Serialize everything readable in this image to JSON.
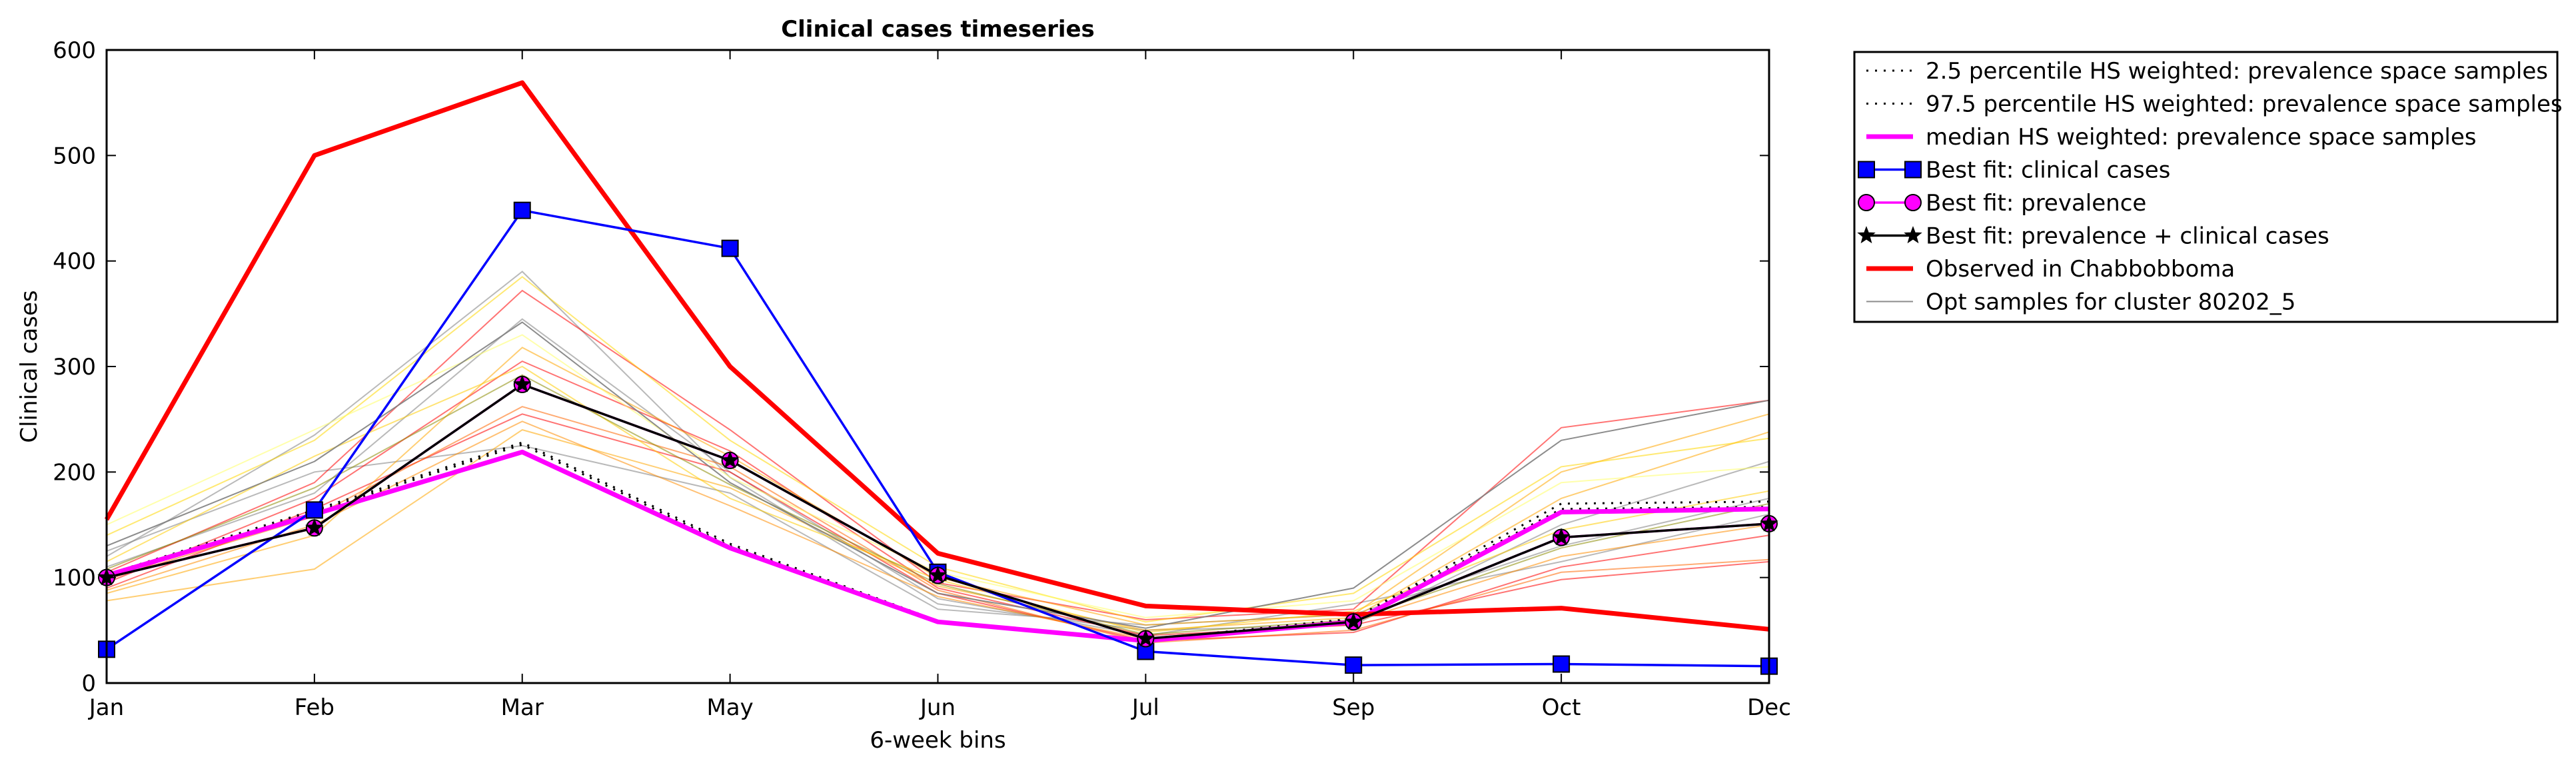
{
  "chart_data": {
    "type": "line",
    "title": "Clinical cases timeseries",
    "xlabel": "6-week bins",
    "ylabel": "Clinical cases",
    "categories": [
      "Jan",
      "Feb",
      "Mar",
      "May",
      "Jun",
      "Jul",
      "Sep",
      "Oct",
      "Dec"
    ],
    "yticks": [
      "0",
      "100",
      "200",
      "300",
      "400",
      "500",
      "600"
    ],
    "ylim": [
      0,
      600
    ],
    "grid": false,
    "legend_position": "outside-top-right",
    "series": [
      {
        "name": "2.5 percentile HS weighted: prevalence space samples",
        "color": "#000000",
        "style": "dotted",
        "values": [
          102,
          162,
          226,
          130,
          58,
          40,
          60,
          165,
          167
        ]
      },
      {
        "name": "97.5 percentile HS weighted: prevalence space samples",
        "color": "#000000",
        "style": "dotted",
        "values": [
          103,
          164,
          228,
          132,
          59,
          41,
          61,
          170,
          172
        ]
      },
      {
        "name": "median HS weighted: prevalence space samples",
        "color": "#ff00ff",
        "style": "solid-thick",
        "values": [
          102,
          160,
          219,
          128,
          58,
          40,
          58,
          162,
          165
        ]
      },
      {
        "name": "Best fit: clinical cases",
        "color": "#0000ff",
        "marker": "square",
        "values": [
          32,
          164,
          448,
          412,
          105,
          30,
          17,
          18,
          16
        ]
      },
      {
        "name": "Best fit: prevalence",
        "color": "#ff00ff",
        "marker": "circle",
        "values": [
          100,
          147,
          283,
          211,
          102,
          42,
          58,
          138,
          151
        ]
      },
      {
        "name": "Best fit: prevalence + clinical cases",
        "color": "#000000",
        "marker": "star",
        "values": [
          100,
          147,
          283,
          211,
          102,
          42,
          58,
          138,
          151
        ]
      },
      {
        "name": "Observed in Chabbobboma",
        "color": "#ff0000",
        "style": "solid-thick",
        "values": [
          155,
          500,
          569,
          300,
          123,
          73,
          65,
          71,
          51
        ]
      },
      {
        "name": "Opt samples for cluster 80202_5",
        "color": "#808080",
        "style": "thin",
        "values": [
          130,
          210,
          342,
          190,
          85,
          52,
          90,
          230,
          268
        ]
      }
    ],
    "opt_samples": [
      {
        "color": "#808080",
        "values": [
          120,
          235,
          390,
          195,
          75,
          50,
          55,
          150,
          210
        ]
      },
      {
        "color": "#808080",
        "values": [
          110,
          180,
          345,
          200,
          80,
          45,
          75,
          115,
          160
        ]
      },
      {
        "color": "#808080",
        "values": [
          125,
          200,
          225,
          180,
          70,
          55,
          65,
          130,
          175
        ]
      },
      {
        "color": "#ff0000",
        "values": [
          105,
          190,
          372,
          240,
          95,
          60,
          70,
          242,
          268
        ]
      },
      {
        "color": "#ff0000",
        "values": [
          95,
          175,
          305,
          220,
          90,
          45,
          55,
          98,
          115
        ]
      },
      {
        "color": "#ff0000",
        "values": [
          90,
          165,
          255,
          200,
          85,
          40,
          48,
          110,
          140
        ]
      },
      {
        "color": "#ff6600",
        "values": [
          98,
          158,
          262,
          205,
          88,
          38,
          50,
          105,
          117
        ]
      },
      {
        "color": "#ffa500",
        "values": [
          85,
          140,
          318,
          215,
          100,
          55,
          65,
          200,
          255
        ]
      },
      {
        "color": "#ffa500",
        "values": [
          78,
          108,
          240,
          185,
          92,
          50,
          62,
          175,
          238
        ]
      },
      {
        "color": "#ffd700",
        "values": [
          140,
          230,
          385,
          230,
          110,
          58,
          85,
          205,
          232
        ]
      },
      {
        "color": "#ffff66",
        "values": [
          150,
          240,
          330,
          195,
          105,
          62,
          78,
          190,
          205
        ]
      },
      {
        "color": "#ffcc00",
        "values": [
          115,
          215,
          300,
          175,
          98,
          48,
          68,
          145,
          182
        ]
      },
      {
        "color": "#ff8c00",
        "values": [
          88,
          150,
          248,
          168,
          82,
          42,
          58,
          120,
          150
        ]
      },
      {
        "color": "#8b8b00",
        "values": [
          108,
          185,
          292,
          188,
          94,
          46,
          60,
          128,
          170
        ]
      }
    ]
  }
}
